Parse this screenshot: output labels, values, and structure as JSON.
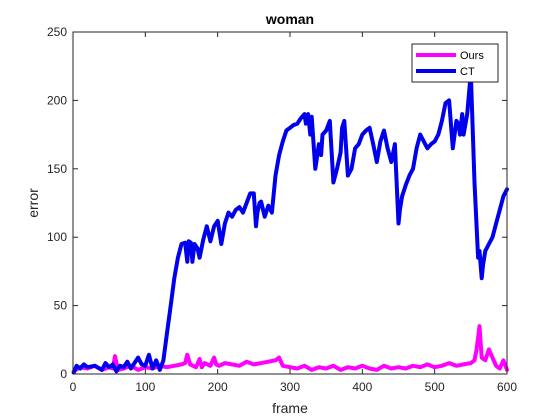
{
  "chart_data": {
    "type": "line",
    "title": "woman",
    "xlabel": "frame",
    "ylabel": "error",
    "xlim": [
      0,
      600
    ],
    "ylim": [
      0,
      250
    ],
    "xticks": [
      "0",
      "100",
      "200",
      "300",
      "400",
      "500",
      "600"
    ],
    "yticks": [
      "0",
      "50",
      "100",
      "150",
      "200",
      "250"
    ],
    "grid": false,
    "legend_position": "top-right",
    "series": [
      {
        "name": "Ours",
        "color": "#ff00ff",
        "x": [
          1,
          10,
          20,
          30,
          40,
          50,
          55,
          58,
          62,
          70,
          80,
          90,
          100,
          110,
          120,
          130,
          140,
          150,
          155,
          158,
          162,
          170,
          175,
          178,
          182,
          190,
          195,
          198,
          202,
          210,
          220,
          230,
          240,
          250,
          260,
          270,
          280,
          285,
          290,
          300,
          310,
          320,
          330,
          340,
          350,
          360,
          370,
          380,
          390,
          400,
          410,
          420,
          430,
          440,
          450,
          460,
          470,
          480,
          490,
          500,
          510,
          520,
          530,
          540,
          550,
          555,
          558,
          562,
          565,
          570,
          575,
          580,
          585,
          590,
          595,
          600
        ],
        "y": [
          2,
          5,
          4,
          6,
          3,
          5,
          4,
          13,
          3,
          4,
          6,
          3,
          5,
          4,
          6,
          5,
          6,
          7,
          8,
          14,
          7,
          5,
          11,
          5,
          8,
          6,
          12,
          7,
          6,
          8,
          7,
          6,
          9,
          7,
          8,
          9,
          10,
          12,
          6,
          5,
          4,
          6,
          3,
          5,
          4,
          6,
          3,
          5,
          4,
          6,
          4,
          3,
          6,
          4,
          5,
          4,
          6,
          5,
          7,
          5,
          6,
          8,
          6,
          7,
          8,
          10,
          18,
          35,
          12,
          10,
          18,
          12,
          6,
          4,
          10,
          3
        ]
      },
      {
        "name": "CT",
        "color": "#0000ee",
        "x": [
          1,
          5,
          10,
          15,
          20,
          30,
          40,
          45,
          50,
          55,
          60,
          65,
          70,
          75,
          80,
          90,
          95,
          100,
          105,
          110,
          115,
          120,
          125,
          130,
          135,
          140,
          145,
          150,
          155,
          158,
          160,
          163,
          165,
          168,
          172,
          175,
          180,
          185,
          190,
          195,
          200,
          205,
          210,
          215,
          220,
          225,
          230,
          235,
          240,
          245,
          250,
          253,
          255,
          258,
          260,
          265,
          270,
          275,
          280,
          285,
          290,
          295,
          300,
          305,
          310,
          315,
          320,
          322,
          325,
          328,
          330,
          335,
          340,
          343,
          345,
          350,
          355,
          360,
          365,
          370,
          372,
          375,
          380,
          385,
          390,
          395,
          400,
          405,
          410,
          415,
          420,
          425,
          430,
          435,
          440,
          445,
          450,
          452,
          455,
          460,
          465,
          470,
          475,
          480,
          485,
          490,
          495,
          500,
          505,
          510,
          515,
          520,
          525,
          530,
          533,
          535,
          538,
          540,
          545,
          550,
          555,
          560,
          562,
          565,
          567,
          570,
          575,
          580,
          585,
          590,
          595,
          600
        ],
        "y": [
          1,
          6,
          4,
          7,
          5,
          6,
          3,
          8,
          5,
          7,
          2,
          6,
          5,
          9,
          4,
          12,
          7,
          6,
          14,
          4,
          10,
          3,
          10,
          30,
          50,
          70,
          85,
          95,
          96,
          82,
          97,
          96,
          82,
          95,
          92,
          85,
          98,
          108,
          97,
          108,
          112,
          95,
          110,
          118,
          115,
          120,
          122,
          118,
          125,
          132,
          132,
          108,
          118,
          125,
          126,
          115,
          123,
          118,
          145,
          160,
          170,
          178,
          180,
          182,
          183,
          187,
          190,
          183,
          190,
          175,
          188,
          150,
          168,
          160,
          175,
          178,
          185,
          140,
          150,
          162,
          180,
          185,
          145,
          150,
          165,
          168,
          175,
          178,
          180,
          168,
          155,
          170,
          178,
          165,
          155,
          168,
          110,
          120,
          130,
          138,
          145,
          150,
          165,
          175,
          170,
          165,
          168,
          170,
          175,
          185,
          198,
          200,
          165,
          185,
          183,
          175,
          190,
          175,
          190,
          220,
          140,
          85,
          90,
          70,
          80,
          90,
          95,
          100,
          110,
          120,
          130,
          135
        ]
      }
    ]
  }
}
